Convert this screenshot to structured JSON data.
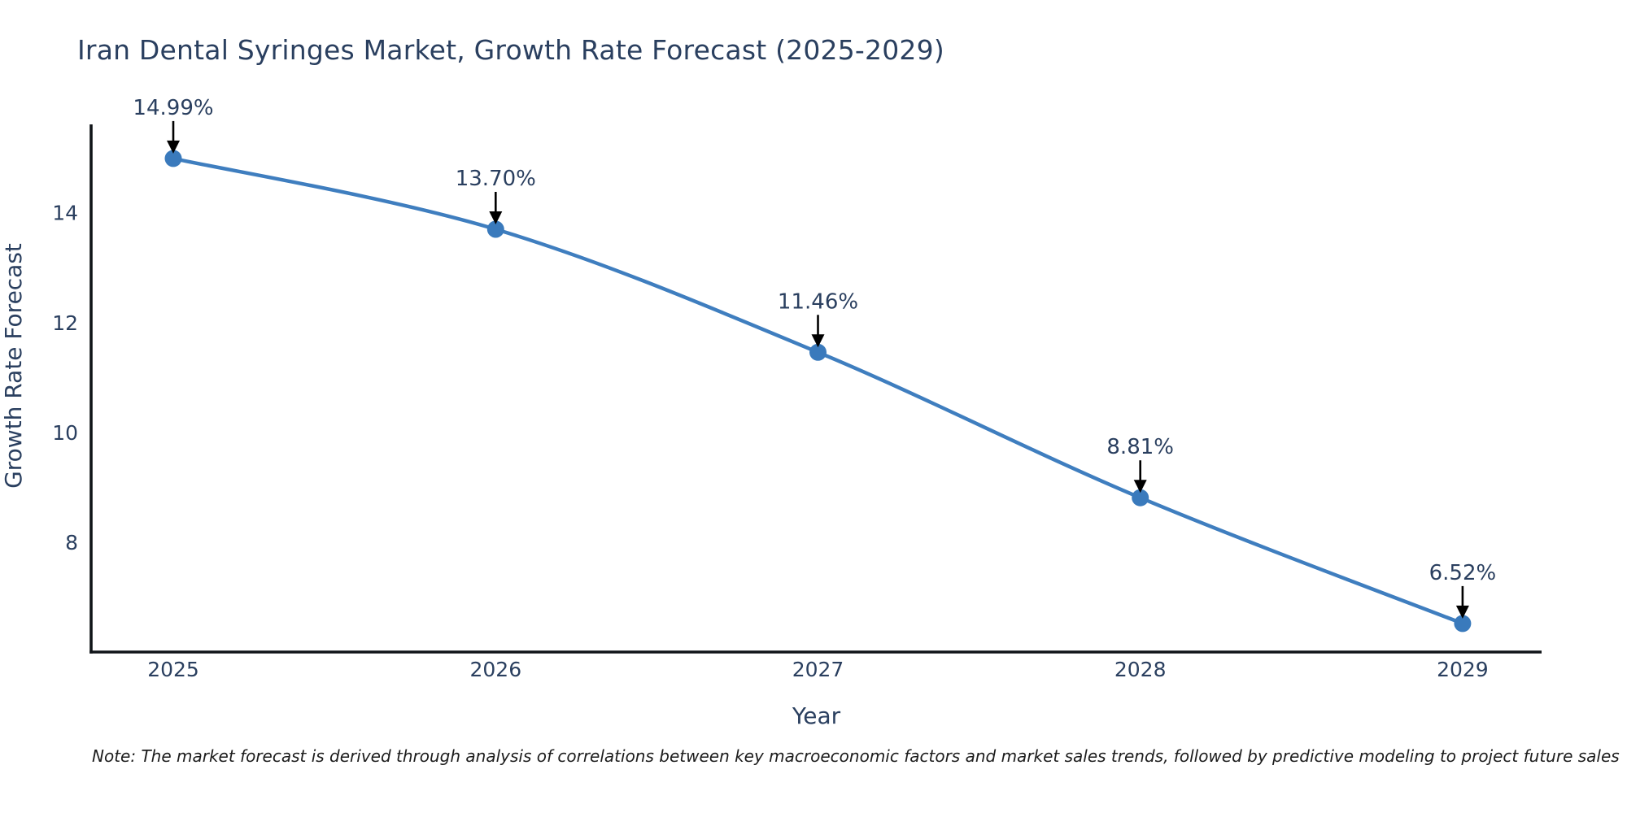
{
  "title": "Iran Dental Syringes Market, Growth Rate Forecast (2025-2029)",
  "note": "Note: The market forecast is derived through analysis of correlations between key macroeconomic factors and market sales trends, followed by predictive modeling to project future sales",
  "chart_data": {
    "type": "line",
    "title": "Iran Dental Syringes Market, Growth Rate Forecast (2025-2029)",
    "xlabel": "Year",
    "ylabel": "Growth Rate Forecast",
    "categories": [
      2025,
      2026,
      2027,
      2028,
      2029
    ],
    "values": [
      14.99,
      13.7,
      11.46,
      8.81,
      6.52
    ],
    "point_labels": [
      "14.99%",
      "13.70%",
      "11.46%",
      "8.81%",
      "6.52%"
    ],
    "yticks": [
      8,
      10,
      12,
      14
    ],
    "ylim": [
      6.0,
      15.61
    ],
    "xlim": [
      2024.745,
      2029.245
    ],
    "grid": false,
    "legend": "none",
    "line_shape": "spline",
    "line_color": "#3f7ebf",
    "marker_color": "#3a7abc",
    "text_color": "#2a3f5f",
    "axis_color": "#101418",
    "annotation_arrow_color": "#000000"
  }
}
